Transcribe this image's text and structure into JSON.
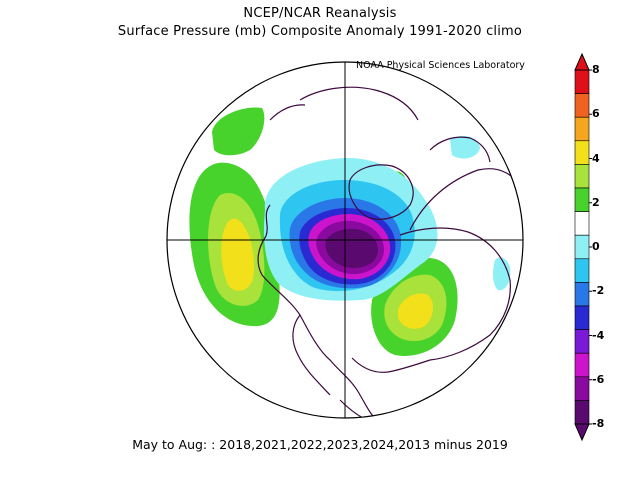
{
  "header": {
    "line1": "NCEP/NCAR Reanalysis",
    "line2": "Surface Pressure (mb) Composite Anomaly 1991-2020 climo",
    "credit": "NOAA Physical Sciences Laboratory"
  },
  "footer": {
    "text": "May to Aug: : 2018,2021,2022,2023,2024,2013 minus 2019"
  },
  "colorbar": {
    "levels": [
      "8",
      "6",
      "4",
      "2",
      "0",
      "-2",
      "-4",
      "-6",
      "-8"
    ],
    "colors": [
      "#e0101a",
      "#f0621f",
      "#f5a51e",
      "#f1e01a",
      "#a8e23a",
      "#48d22c",
      "#ffffff",
      "#8ef0f5",
      "#2ec6f0",
      "#2a78e8",
      "#2a2ad2",
      "#7a1ad6",
      "#cc14cc",
      "#8a0aa0",
      "#5a0a6e"
    ]
  },
  "anomalies": {
    "negative_center": "-8",
    "positive_centers": [
      "4",
      "4"
    ]
  }
}
